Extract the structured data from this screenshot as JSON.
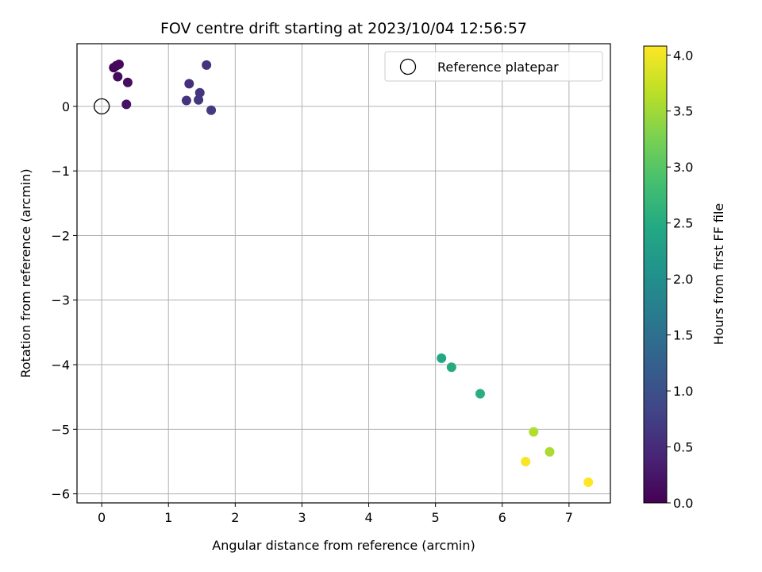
{
  "chart_data": {
    "type": "scatter",
    "title": "FOV centre drift starting at 2023/10/04 12:56:57",
    "xlabel": "Angular distance from reference (arcmin)",
    "ylabel": "Rotation from reference (arcmin)",
    "xlim": [
      -0.37,
      7.62
    ],
    "ylim": [
      -6.14,
      0.97
    ],
    "x_ticks": [
      0,
      1,
      2,
      3,
      4,
      5,
      6,
      7
    ],
    "x_tick_labels": [
      "0",
      "1",
      "2",
      "3",
      "4",
      "5",
      "6",
      "7"
    ],
    "y_ticks": [
      0,
      -1,
      -2,
      -3,
      -4,
      -5,
      -6
    ],
    "y_tick_labels": [
      "0",
      "−1",
      "−2",
      "−3",
      "−4",
      "−5",
      "−6"
    ],
    "grid": true,
    "legend_position": "top-right",
    "reference": {
      "name": "Reference platepar",
      "x": 0,
      "y": 0
    },
    "series": [
      {
        "points": [
          {
            "x": 0.18,
            "y": 0.6,
            "hours": 0.05
          },
          {
            "x": 0.22,
            "y": 0.63,
            "hours": 0.08
          },
          {
            "x": 0.26,
            "y": 0.65,
            "hours": 0.1
          },
          {
            "x": 0.24,
            "y": 0.46,
            "hours": 0.12
          },
          {
            "x": 0.39,
            "y": 0.37,
            "hours": 0.15
          },
          {
            "x": 0.37,
            "y": 0.03,
            "hours": 0.18
          },
          {
            "x": 1.31,
            "y": 0.35,
            "hours": 0.55
          },
          {
            "x": 1.57,
            "y": 0.64,
            "hours": 0.6
          },
          {
            "x": 1.47,
            "y": 0.21,
            "hours": 0.62
          },
          {
            "x": 1.27,
            "y": 0.09,
            "hours": 0.6
          },
          {
            "x": 1.45,
            "y": 0.1,
            "hours": 0.65
          },
          {
            "x": 1.64,
            "y": -0.06,
            "hours": 0.7
          },
          {
            "x": 5.09,
            "y": -3.9,
            "hours": 2.45
          },
          {
            "x": 5.24,
            "y": -4.04,
            "hours": 2.5
          },
          {
            "x": 5.67,
            "y": -4.45,
            "hours": 2.55
          },
          {
            "x": 6.47,
            "y": -5.04,
            "hours": 3.6
          },
          {
            "x": 6.71,
            "y": -5.35,
            "hours": 3.55
          },
          {
            "x": 6.35,
            "y": -5.5,
            "hours": 4.05
          },
          {
            "x": 7.29,
            "y": -5.82,
            "hours": 4.1
          }
        ]
      }
    ],
    "colorbar": {
      "label": "Hours from first FF file",
      "min": 0.0,
      "max": 4.08,
      "ticks": [
        0.0,
        0.5,
        1.0,
        1.5,
        2.0,
        2.5,
        3.0,
        3.5,
        4.0
      ],
      "tick_labels": [
        "0.0",
        "0.5",
        "1.0",
        "1.5",
        "2.0",
        "2.5",
        "3.0",
        "3.5",
        "4.0"
      ],
      "colormap": "viridis",
      "colormap_stops": [
        "#440154",
        "#482475",
        "#414487",
        "#355f8d",
        "#2a788e",
        "#21918c",
        "#22a884",
        "#44bf70",
        "#7ad151",
        "#bddf26",
        "#fde725"
      ]
    }
  }
}
